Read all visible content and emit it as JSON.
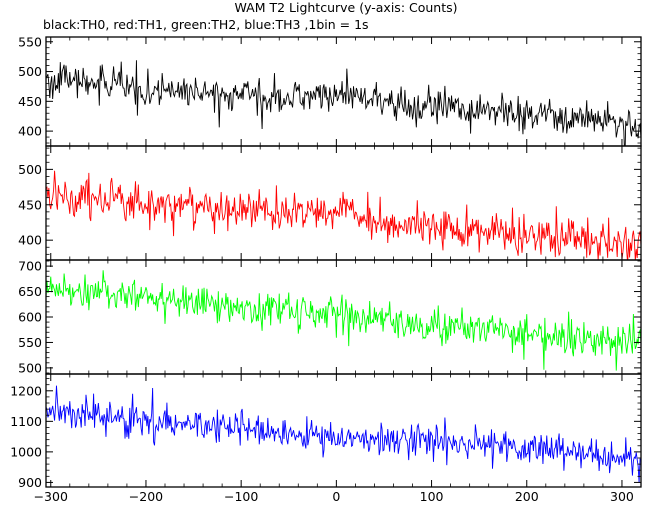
{
  "title": "WAM T2 Lightcurve (y-axis: Counts)",
  "subtitle": "black:TH0, red:TH1, green:TH2, blue:TH3 ,1bin = 1s",
  "chart_data": {
    "type": "line",
    "title": "WAM T2 Lightcurve (y-axis: Counts)",
    "subtitle": "black:TH0, red:TH1, green:TH2, blue:TH3 ,1bin = 1s",
    "xlim": [
      -305,
      320
    ],
    "xticks": [
      -300,
      -200,
      -100,
      0,
      100,
      200,
      300
    ],
    "xtick_labels": [
      "−300",
      "−200",
      "−100",
      "0",
      "100",
      "200",
      "300"
    ],
    "grid": false,
    "x_start": -305,
    "x_step": 1,
    "panels": [
      {
        "name": "TH0",
        "color": "#000000",
        "ylim": [
          375,
          558
        ],
        "yticks": [
          400,
          450,
          500,
          550
        ],
        "trend": [
          [
            -305,
            485
          ],
          [
            -250,
            482
          ],
          [
            -200,
            472
          ],
          [
            -150,
            465
          ],
          [
            -100,
            462
          ],
          [
            -50,
            458
          ],
          [
            0,
            458
          ],
          [
            10,
            465
          ],
          [
            30,
            452
          ],
          [
            100,
            440
          ],
          [
            200,
            428
          ],
          [
            250,
            422
          ],
          [
            320,
            405
          ]
        ],
        "noise": 22
      },
      {
        "name": "TH1",
        "color": "#ff0000",
        "ylim": [
          372,
          533
        ],
        "yticks": [
          400,
          450,
          500
        ],
        "trend": [
          [
            -305,
            460
          ],
          [
            -250,
            462
          ],
          [
            -200,
            452
          ],
          [
            -150,
            448
          ],
          [
            -100,
            442
          ],
          [
            -50,
            440
          ],
          [
            0,
            438
          ],
          [
            10,
            448
          ],
          [
            30,
            432
          ],
          [
            100,
            420
          ],
          [
            200,
            410
          ],
          [
            250,
            402
          ],
          [
            320,
            393
          ]
        ],
        "noise": 22
      },
      {
        "name": "TH2",
        "color": "#00ff00",
        "ylim": [
          488,
          712
        ],
        "yticks": [
          500,
          550,
          600,
          650,
          700
        ],
        "trend": [
          [
            -305,
            658
          ],
          [
            -250,
            650
          ],
          [
            -200,
            640
          ],
          [
            -150,
            630
          ],
          [
            -100,
            620
          ],
          [
            -50,
            612
          ],
          [
            0,
            605
          ],
          [
            10,
            612
          ],
          [
            30,
            598
          ],
          [
            100,
            585
          ],
          [
            200,
            570
          ],
          [
            250,
            560
          ],
          [
            320,
            548
          ]
        ],
        "noise": 28
      },
      {
        "name": "TH3",
        "color": "#0000ff",
        "ylim": [
          885,
          1255
        ],
        "yticks": [
          900,
          1000,
          1100,
          1200
        ],
        "trend": [
          [
            -305,
            1135
          ],
          [
            -250,
            1120
          ],
          [
            -200,
            1100
          ],
          [
            -150,
            1090
          ],
          [
            -100,
            1075
          ],
          [
            -50,
            1060
          ],
          [
            0,
            1050
          ],
          [
            100,
            1035
          ],
          [
            200,
            1010
          ],
          [
            250,
            995
          ],
          [
            320,
            960
          ]
        ],
        "noise": 40
      }
    ]
  }
}
